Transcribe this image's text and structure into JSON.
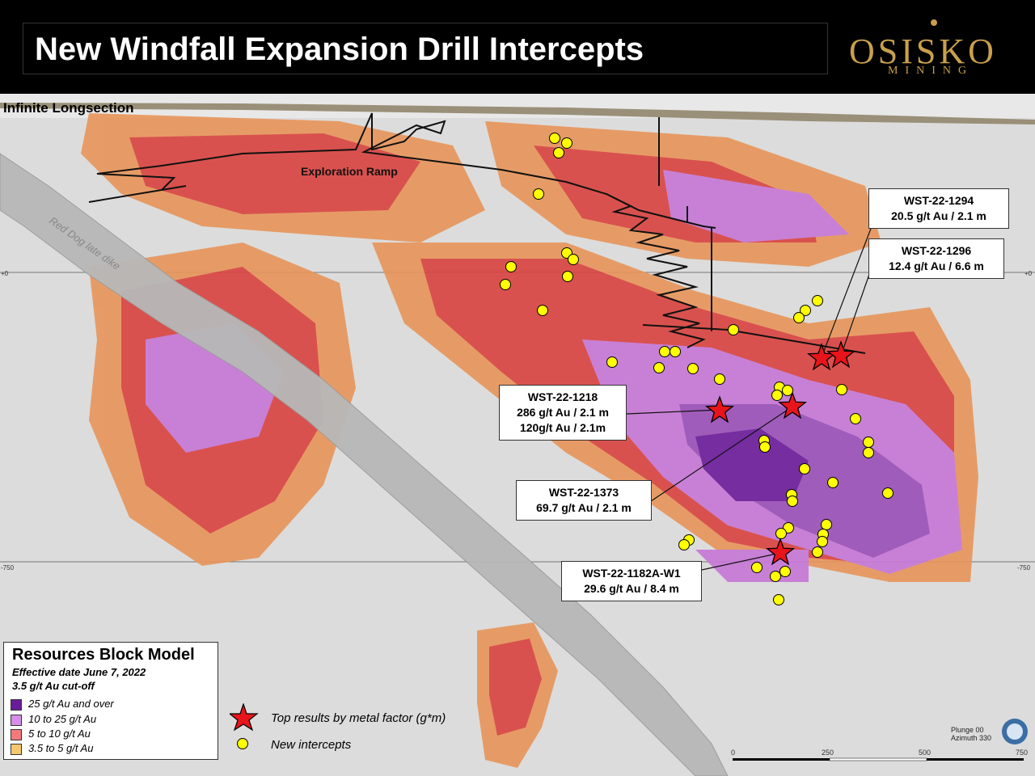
{
  "header": {
    "title": "New Windfall Expansion Drill Intercepts",
    "logo_main": "OSISKO",
    "logo_sub": "MINING"
  },
  "map": {
    "section_title": "Infinite Longsection",
    "ramp_label": "Exploration Ramp",
    "dike_label": "Red Dog late dike",
    "elevation_labels": {
      "upper": "+0",
      "lower": "-750"
    }
  },
  "callouts": [
    {
      "id": "WST-22-1294",
      "line1": "20.5 g/t Au / 2.1 m"
    },
    {
      "id": "WST-22-1296",
      "line1": "12.4 g/t Au / 6.6 m"
    },
    {
      "id": "WST-22-1218",
      "line1": "286 g/t Au / 2.1 m",
      "line2": "120g/t Au / 2.1m"
    },
    {
      "id": "WST-22-1373",
      "line1": "69.7 g/t Au / 2.1 m"
    },
    {
      "id": "WST-22-1182A-W1",
      "line1": "29.6 g/t Au / 8.4 m"
    }
  ],
  "legend": {
    "title": "Resources Block Model",
    "subtitle1": "Effective date June 7, 2022",
    "subtitle2": "3.5 g/t Au cut-off",
    "items": [
      {
        "label": "25 g/t Au and over",
        "color": "#6a1b9a"
      },
      {
        "label": "10 to 25 g/t Au",
        "color": "#d68ee6"
      },
      {
        "label": "5 to 10 g/t Au",
        "color": "#f27a7a"
      },
      {
        "label": "3.5 to 5 g/t Au",
        "color": "#f5c76e"
      }
    ]
  },
  "symbol_key": {
    "star_label": "Top results by metal factor (g*m)",
    "dot_label": "New intercepts"
  },
  "scale_bar": {
    "ticks": [
      "0",
      "250",
      "500",
      "750"
    ]
  },
  "orientation": {
    "line1": "Plunge 00",
    "line2": "Azimuth 330"
  },
  "colors": {
    "header_bg": "#000000",
    "logo_gold": "#c9a04b",
    "star": "#e8141b",
    "dot": "#ffff00"
  }
}
